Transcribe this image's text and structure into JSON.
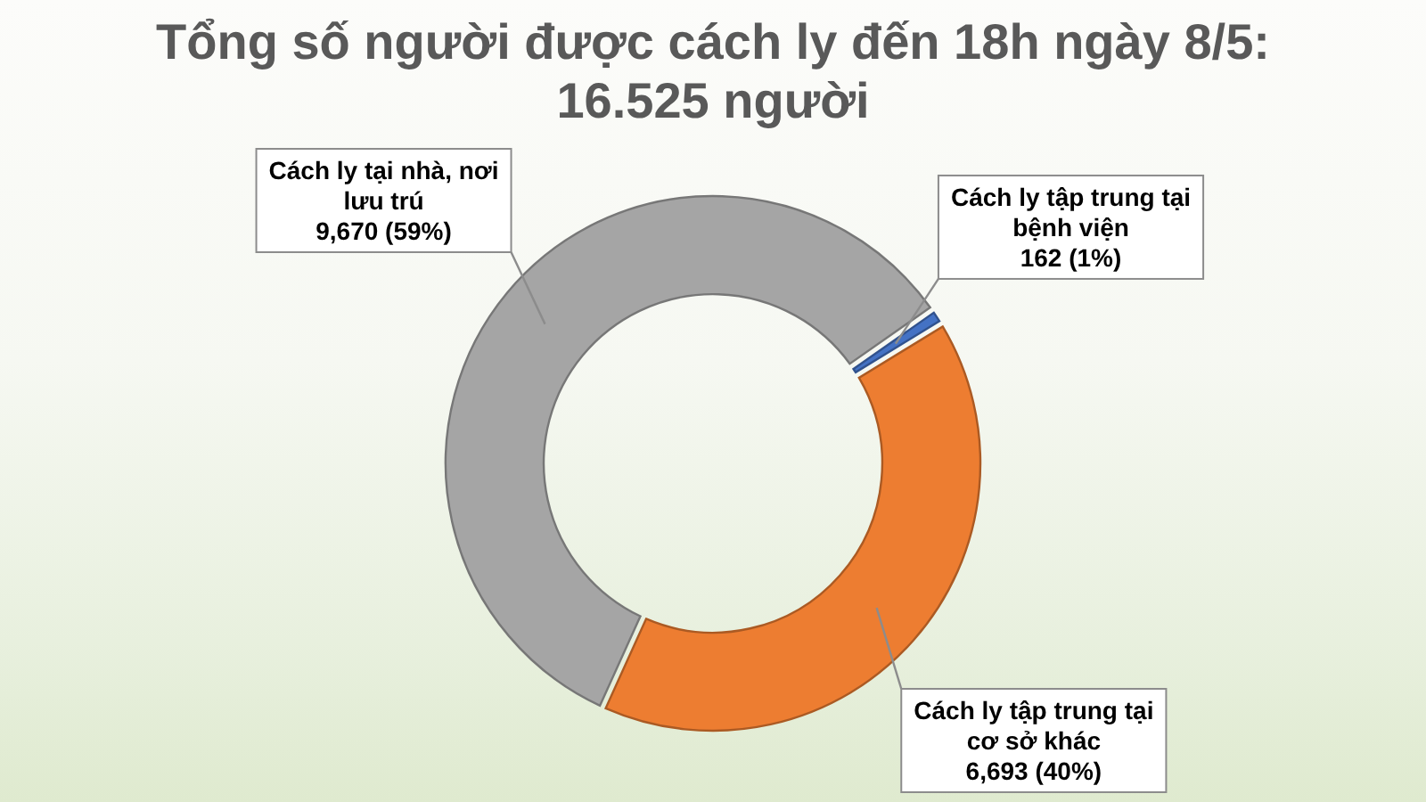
{
  "chart_data": {
    "type": "donut",
    "title": "Tổng số người được cách ly đến 18h ngày 8/5: 16.525 người",
    "categories": [
      "Cách ly tập trung tại bệnh viện",
      "Cách ly tập trung tại cơ sở khác",
      "Cách ly tại nhà, nơi lưu trú"
    ],
    "values": [
      162,
      6693,
      9670
    ],
    "colors": [
      "#4472c4",
      "#ed7d31",
      "#a5a5a5"
    ],
    "value_labels": [
      "162 (1%)",
      "6,693 (40%)",
      "9,670 (59%)"
    ]
  }
}
